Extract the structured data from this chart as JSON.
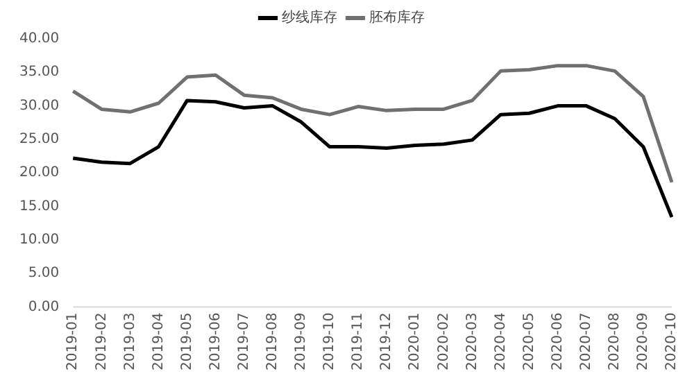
{
  "chart_data": {
    "type": "line",
    "categories": [
      "2019-01",
      "2019-02",
      "2019-03",
      "2019-04",
      "2019-05",
      "2019-06",
      "2019-07",
      "2019-08",
      "2019-09",
      "2019-10",
      "2019-11",
      "2019-12",
      "2020-01",
      "2020-02",
      "2020-03",
      "2020-04",
      "2020-05",
      "2020-06",
      "2020-07",
      "2020-08",
      "2020-09",
      "2020-10"
    ],
    "series": [
      {
        "name": "纱线库存",
        "color": "#000000",
        "values": [
          22.2,
          21.6,
          21.4,
          23.9,
          30.8,
          30.6,
          29.7,
          30.0,
          27.6,
          23.9,
          23.9,
          23.7,
          24.1,
          24.3,
          24.9,
          28.7,
          28.9,
          30.0,
          30.0,
          28.1,
          23.9,
          13.4
        ]
      },
      {
        "name": "胚布库存",
        "color": "#707070",
        "values": [
          32.2,
          29.5,
          29.1,
          30.4,
          34.3,
          34.6,
          31.6,
          31.2,
          29.5,
          28.7,
          29.9,
          29.3,
          29.5,
          29.5,
          30.8,
          35.2,
          35.4,
          36.0,
          36.0,
          35.2,
          31.4,
          18.6
        ]
      }
    ],
    "ylim": [
      0,
      40
    ],
    "yticks": [
      {
        "value": 0,
        "label": "0.00"
      },
      {
        "value": 5,
        "label": "5.00"
      },
      {
        "value": 10,
        "label": "10.00"
      },
      {
        "value": 15,
        "label": "15.00"
      },
      {
        "value": 20,
        "label": "20.00"
      },
      {
        "value": 25,
        "label": "25.00"
      },
      {
        "value": 30,
        "label": "30.00"
      },
      {
        "value": 35,
        "label": "35.00"
      },
      {
        "value": 40,
        "label": "40.00"
      }
    ],
    "grid": false,
    "legend": "top",
    "marker": "none",
    "line_style": "solid"
  }
}
